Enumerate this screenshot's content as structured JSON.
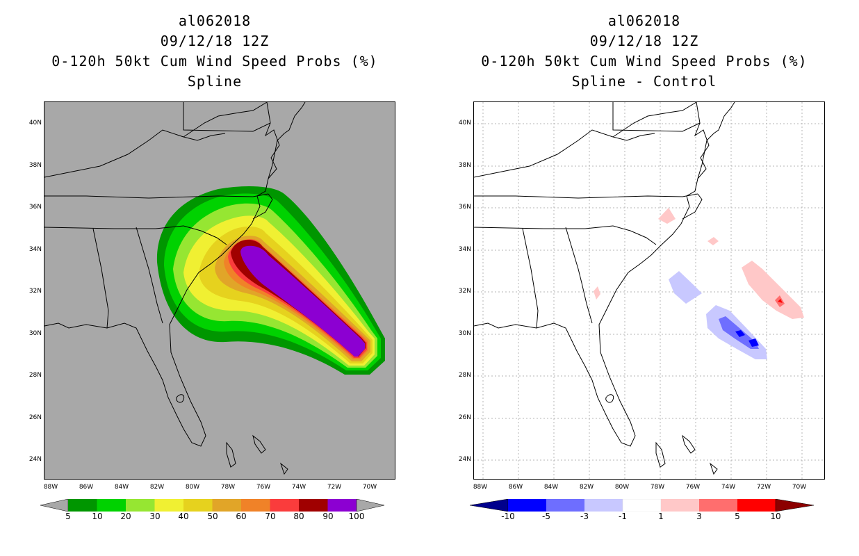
{
  "left_panel": {
    "title_lines": [
      "al062018",
      "09/12/18 12Z",
      "0-120h 50kt Cum Wind Speed Probs (%)",
      "Spline"
    ]
  },
  "right_panel": {
    "title_lines": [
      "al062018",
      "09/12/18 12Z",
      "0-120h 50kt Cum Wind Speed Probs (%)",
      "Spline - Control"
    ]
  },
  "lat_labels": [
    "40N",
    "38N",
    "36N",
    "34N",
    "32N",
    "30N",
    "28N",
    "26N",
    "24N"
  ],
  "lon_labels": [
    "88W",
    "86W",
    "84W",
    "82W",
    "80W",
    "78W",
    "76W",
    "74W",
    "72W",
    "70W"
  ],
  "left_colorbar": {
    "labels": [
      "5",
      "10",
      "20",
      "30",
      "40",
      "50",
      "60",
      "70",
      "80",
      "90",
      "100"
    ],
    "colors": [
      "#009600",
      "#00d200",
      "#96e632",
      "#f0f032",
      "#e6d21e",
      "#e1a528",
      "#f08228",
      "#fa3c3c",
      "#a00000",
      "#8c00d2"
    ],
    "under_color": "#a8a8a8",
    "over_color": "#a8a8a8"
  },
  "right_colorbar": {
    "labels": [
      "-10",
      "-5",
      "-3",
      "-1",
      "1",
      "3",
      "5",
      "10"
    ],
    "colors": [
      "#0000ff",
      "#6e6eff",
      "#c8c8ff",
      "#ffffff",
      "#ffc8c8",
      "#ff6e6e",
      "#ff0000"
    ],
    "under_color": "#00008c",
    "over_color": "#8c0000"
  }
}
